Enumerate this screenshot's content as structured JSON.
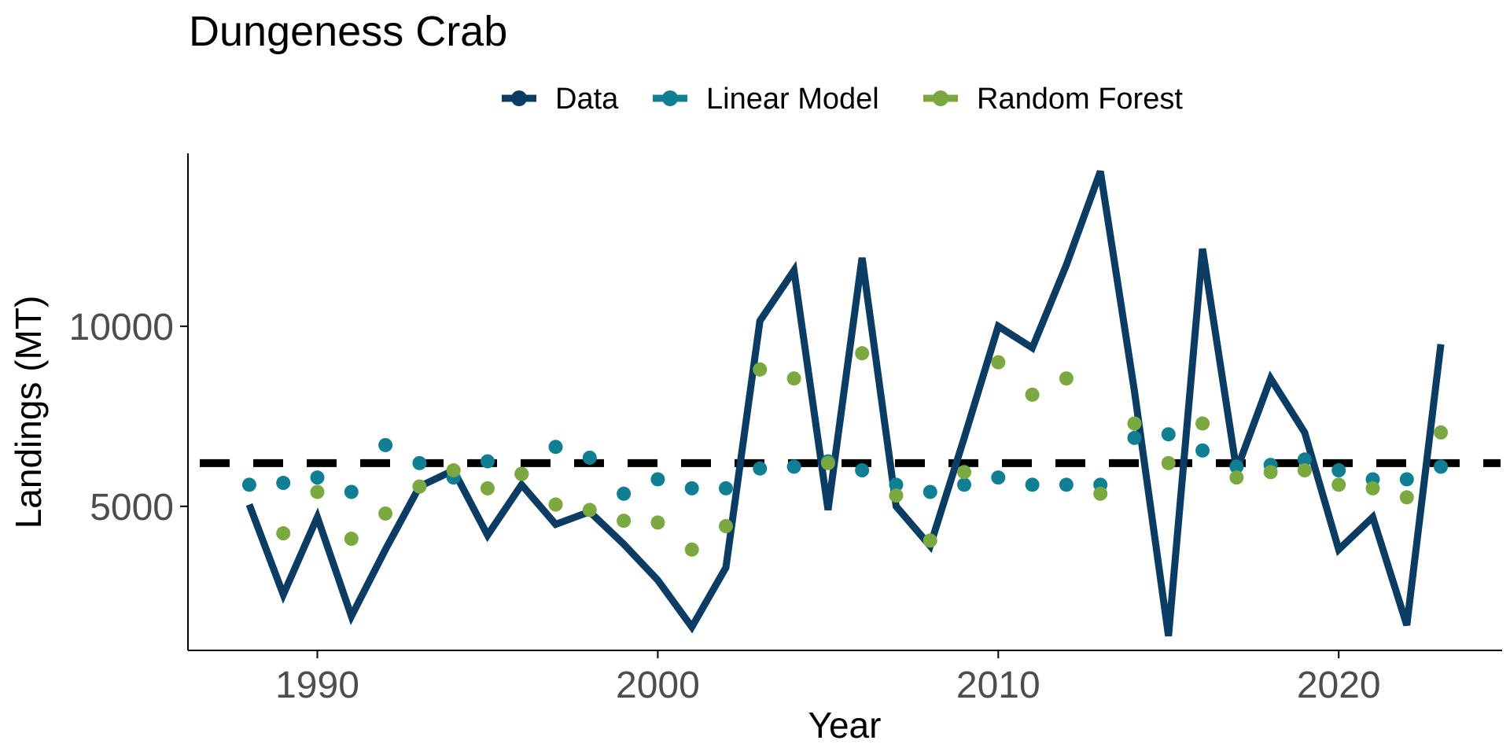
{
  "chart_data": {
    "type": "line",
    "title": "Dungeness Crab",
    "xlabel": "Year",
    "ylabel": "Landings (MT)",
    "xlim": [
      1986.2,
      2024.8
    ],
    "ylim": [
      1000,
      14800
    ],
    "x_ticks": [
      1990,
      2000,
      2010,
      2020
    ],
    "y_ticks": [
      5000,
      10000
    ],
    "legend_position": "top",
    "grid": false,
    "reference_line": {
      "y": 6200,
      "style": "dashed",
      "color": "#000000"
    },
    "x": [
      1988,
      1989,
      1990,
      1991,
      1992,
      1993,
      1994,
      1995,
      1996,
      1997,
      1998,
      1999,
      2000,
      2001,
      2002,
      2003,
      2004,
      2005,
      2006,
      2007,
      2008,
      2009,
      2010,
      2011,
      2012,
      2013,
      2014,
      2015,
      2016,
      2017,
      2018,
      2019,
      2020,
      2021,
      2022,
      2023
    ],
    "series": [
      {
        "name": "Data",
        "type": "line",
        "color": "#0b3c64",
        "values": [
          5050,
          2550,
          4700,
          1950,
          3800,
          5550,
          6000,
          4200,
          5600,
          4500,
          4850,
          3950,
          2950,
          1650,
          3300,
          10150,
          11550,
          4900,
          11900,
          5000,
          3900,
          6900,
          10000,
          9400,
          11700,
          14300,
          8200,
          1400,
          12150,
          6000,
          8550,
          7050,
          3800,
          4700,
          1700,
          9500
        ]
      },
      {
        "name": "Linear Model",
        "type": "scatter",
        "color": "#107f94",
        "values": [
          5600,
          5650,
          5800,
          5400,
          6700,
          6200,
          5800,
          6250,
          5900,
          6650,
          6350,
          5350,
          5750,
          5500,
          5500,
          6050,
          6100,
          6250,
          6000,
          5600,
          5400,
          5600,
          5800,
          5600,
          5600,
          5600,
          6900,
          7000,
          6550,
          6100,
          6150,
          6300,
          6000,
          5750,
          5750,
          6100
        ]
      },
      {
        "name": "Random Forest",
        "type": "scatter",
        "color": "#7ba840",
        "values": [
          null,
          4250,
          5400,
          4100,
          4800,
          5550,
          6000,
          5500,
          5900,
          5050,
          4900,
          4600,
          4550,
          3800,
          4450,
          8800,
          8550,
          6200,
          9250,
          5300,
          4050,
          5950,
          9000,
          8100,
          8550,
          5350,
          7300,
          6200,
          7300,
          5800,
          5950,
          6000,
          5600,
          5500,
          5250,
          7050
        ]
      }
    ]
  }
}
